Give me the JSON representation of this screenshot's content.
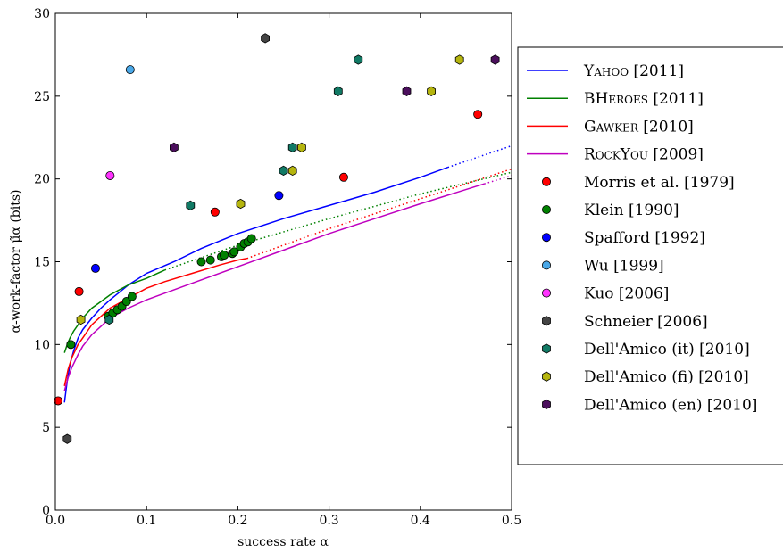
{
  "chart_data": {
    "type": "line",
    "xlabel": "success rate α",
    "ylabel": "α-work-factor μ̃α (bits)",
    "xlim": [
      0,
      0.5
    ],
    "ylim": [
      0,
      30
    ],
    "xticks": [
      "0.0",
      "0.1",
      "0.2",
      "0.3",
      "0.4",
      "0.5"
    ],
    "yticks": [
      "0",
      "5",
      "10",
      "15",
      "20",
      "25",
      "30"
    ],
    "grid": false,
    "legend_position": "right, outside plot",
    "lines": [
      {
        "name": "Yahoo",
        "year": "[2011]",
        "color": "#0000ff",
        "solid": [
          [
            0.01,
            6.5
          ],
          [
            0.013,
            7.8
          ],
          [
            0.016,
            8.8
          ],
          [
            0.02,
            9.6
          ],
          [
            0.025,
            10.4
          ],
          [
            0.03,
            10.9
          ],
          [
            0.04,
            11.6
          ],
          [
            0.05,
            12.2
          ],
          [
            0.06,
            12.7
          ],
          [
            0.08,
            13.6
          ],
          [
            0.1,
            14.3
          ],
          [
            0.13,
            15.0
          ],
          [
            0.16,
            15.8
          ],
          [
            0.2,
            16.7
          ],
          [
            0.25,
            17.6
          ],
          [
            0.3,
            18.4
          ],
          [
            0.35,
            19.2
          ],
          [
            0.4,
            20.1
          ],
          [
            0.43,
            20.7
          ]
        ],
        "dotted": [
          [
            0.43,
            20.7
          ],
          [
            0.5,
            22.0
          ]
        ]
      },
      {
        "name": "BHeroes",
        "year": "[2011]",
        "color": "#008000",
        "solid": [
          [
            0.01,
            9.5
          ],
          [
            0.013,
            10.0
          ],
          [
            0.016,
            10.4
          ],
          [
            0.02,
            10.8
          ],
          [
            0.03,
            11.6
          ],
          [
            0.04,
            12.2
          ],
          [
            0.05,
            12.6
          ],
          [
            0.06,
            13.0
          ],
          [
            0.08,
            13.6
          ],
          [
            0.1,
            14.0
          ],
          [
            0.12,
            14.5
          ]
        ],
        "dotted": [
          [
            0.12,
            14.5
          ],
          [
            0.2,
            16.0
          ],
          [
            0.3,
            17.6
          ],
          [
            0.4,
            19.1
          ],
          [
            0.5,
            20.4
          ]
        ]
      },
      {
        "name": "Gawker",
        "year": "[2010]",
        "color": "#ff0000",
        "solid": [
          [
            0.01,
            7.5
          ],
          [
            0.014,
            8.5
          ],
          [
            0.018,
            9.2
          ],
          [
            0.025,
            10.0
          ],
          [
            0.03,
            10.4
          ],
          [
            0.04,
            11.2
          ],
          [
            0.05,
            11.7
          ],
          [
            0.06,
            12.2
          ],
          [
            0.08,
            12.8
          ],
          [
            0.1,
            13.4
          ],
          [
            0.12,
            13.8
          ],
          [
            0.15,
            14.3
          ],
          [
            0.18,
            14.8
          ],
          [
            0.2,
            15.1
          ],
          [
            0.21,
            15.2
          ]
        ],
        "dotted": [
          [
            0.21,
            15.2
          ],
          [
            0.3,
            17.0
          ],
          [
            0.4,
            18.8
          ],
          [
            0.5,
            20.6
          ]
        ]
      },
      {
        "name": "RockYou",
        "year": "[2009]",
        "color": "#bf00bf",
        "solid": [
          [
            0.01,
            7.2
          ],
          [
            0.014,
            8.0
          ],
          [
            0.018,
            8.6
          ],
          [
            0.025,
            9.4
          ],
          [
            0.03,
            9.9
          ],
          [
            0.04,
            10.6
          ],
          [
            0.05,
            11.1
          ],
          [
            0.06,
            11.6
          ],
          [
            0.08,
            12.2
          ],
          [
            0.1,
            12.7
          ],
          [
            0.15,
            13.7
          ],
          [
            0.2,
            14.7
          ],
          [
            0.25,
            15.7
          ],
          [
            0.3,
            16.7
          ],
          [
            0.35,
            17.6
          ],
          [
            0.4,
            18.5
          ],
          [
            0.47,
            19.7
          ]
        ],
        "dotted": [
          [
            0.47,
            19.7
          ],
          [
            0.5,
            20.2
          ]
        ]
      }
    ],
    "point_series": [
      {
        "name": "Morris et al. [1979]",
        "marker": "circle",
        "color": "#ff0000",
        "points": [
          [
            0.003,
            6.6
          ],
          [
            0.026,
            13.2
          ],
          [
            0.175,
            18.0
          ],
          [
            0.316,
            20.1
          ],
          [
            0.463,
            23.9
          ]
        ]
      },
      {
        "name": "Klein [1990]",
        "marker": "circle",
        "color": "#008000",
        "points": [
          [
            0.017,
            10.0
          ],
          [
            0.058,
            11.7
          ],
          [
            0.063,
            11.9
          ],
          [
            0.068,
            12.1
          ],
          [
            0.073,
            12.3
          ],
          [
            0.078,
            12.6
          ],
          [
            0.084,
            12.9
          ],
          [
            0.16,
            15.0
          ],
          [
            0.17,
            15.1
          ],
          [
            0.182,
            15.3
          ],
          [
            0.185,
            15.4
          ],
          [
            0.194,
            15.5
          ],
          [
            0.196,
            15.6
          ],
          [
            0.203,
            15.9
          ],
          [
            0.207,
            16.1
          ],
          [
            0.211,
            16.2
          ],
          [
            0.215,
            16.4
          ]
        ]
      },
      {
        "name": "Spafford [1992]",
        "marker": "circle",
        "color": "#0000ff",
        "points": [
          [
            0.044,
            14.6
          ],
          [
            0.245,
            19.0
          ]
        ]
      },
      {
        "name": "Wu [1999]",
        "marker": "circle",
        "color": "#4aa8e8",
        "points": [
          [
            0.082,
            26.6
          ]
        ]
      },
      {
        "name": "Kuo [2006]",
        "marker": "circle",
        "color": "#ff33ff",
        "points": [
          [
            0.06,
            20.2
          ]
        ]
      },
      {
        "name": "Schneier [2006]",
        "marker": "hexagon",
        "color": "#444444",
        "points": [
          [
            0.013,
            4.3
          ],
          [
            0.23,
            28.5
          ]
        ]
      },
      {
        "name": "Dell'Amico (it) [2010]",
        "marker": "hexagon",
        "color": "#117a65",
        "points": [
          [
            0.059,
            11.5
          ],
          [
            0.148,
            18.4
          ],
          [
            0.25,
            20.5
          ],
          [
            0.26,
            21.9
          ],
          [
            0.31,
            25.3
          ],
          [
            0.332,
            27.2
          ]
        ]
      },
      {
        "name": "Dell'Amico (fi) [2010]",
        "marker": "hexagon",
        "color": "#b5b50e",
        "points": [
          [
            0.028,
            11.5
          ],
          [
            0.203,
            18.5
          ],
          [
            0.26,
            20.5
          ],
          [
            0.27,
            21.9
          ],
          [
            0.412,
            25.3
          ],
          [
            0.443,
            27.2
          ]
        ]
      },
      {
        "name": "Dell'Amico (en) [2010]",
        "marker": "hexagon",
        "color": "#4b0f5c",
        "points": [
          [
            0.13,
            21.9
          ],
          [
            0.385,
            25.3
          ],
          [
            0.482,
            27.2
          ]
        ]
      }
    ]
  }
}
